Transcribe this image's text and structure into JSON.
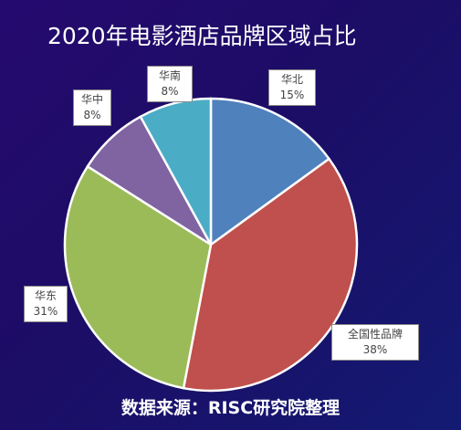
{
  "chart_data": {
    "type": "pie",
    "title": "2020年电影酒店品牌区域占比",
    "source": "数据来源：RISC研究院整理",
    "slices": [
      {
        "name": "华北",
        "value": 15,
        "label": "15%",
        "color": "#4f81bd"
      },
      {
        "name": "全国性品牌",
        "value": 38,
        "label": "38%",
        "color": "#c0504d"
      },
      {
        "name": "华东",
        "value": 31,
        "label": "31%",
        "color": "#9bbb59"
      },
      {
        "name": "华中",
        "value": 8,
        "label": "8%",
        "color": "#8064a2"
      },
      {
        "name": "华南",
        "value": 8,
        "label": "8%",
        "color": "#4bacc6"
      }
    ]
  }
}
